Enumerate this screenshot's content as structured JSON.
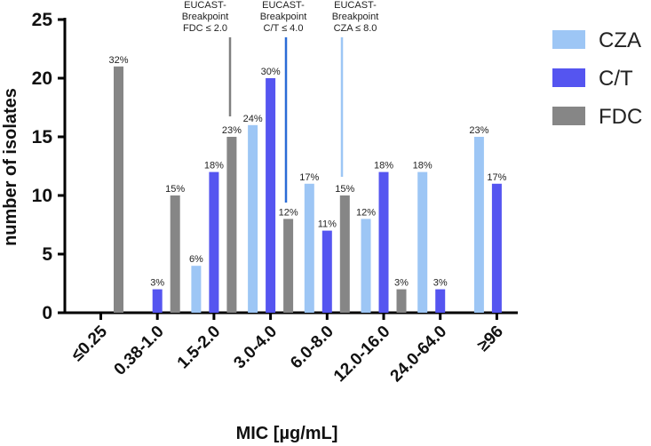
{
  "chart_data": {
    "type": "bar",
    "title": "",
    "xlabel": "MIC [µg/mL]",
    "ylabel": "number of isolates",
    "ylim": [
      0,
      25
    ],
    "yticks": [
      0,
      5,
      10,
      15,
      20,
      25
    ],
    "grid": false,
    "legend_position": "top-right",
    "categories": [
      "≤0.25",
      "0.38-1.0",
      "1.5-2.0",
      "3.0-4.0",
      "6.0-8.0",
      "12.0-16.0",
      "24.0-64.0",
      "≥96"
    ],
    "series": [
      {
        "name": "CZA",
        "color": "#9dc6f5",
        "values": [
          null,
          null,
          4,
          16,
          11,
          8,
          12,
          15
        ],
        "labels": [
          "",
          "",
          "6%",
          "24%",
          "17%",
          "12%",
          "18%",
          "23%"
        ]
      },
      {
        "name": "C/T",
        "color": "#5555f0",
        "values": [
          null,
          2,
          12,
          20,
          7,
          12,
          2,
          11
        ],
        "labels": [
          "",
          "3%",
          "18%",
          "30%",
          "11%",
          "18%",
          "3%",
          "17%"
        ]
      },
      {
        "name": "FDC",
        "color": "#868686",
        "values": [
          21,
          10,
          15,
          8,
          10,
          2,
          null,
          null
        ],
        "labels": [
          "32%",
          "15%",
          "23%",
          "12%",
          "15%",
          "3%",
          "",
          ""
        ]
      }
    ],
    "annotations": [
      {
        "lines": [
          "EUCAST-",
          "Breakpoint",
          "FDC ≤ 2.0"
        ],
        "color": "#808080",
        "x_between": "1.5-2.0 | 3.0-4.0"
      },
      {
        "lines": [
          "EUCAST-",
          "Breakpoint",
          "C/T ≤ 4.0"
        ],
        "color": "#2b6cd6",
        "x_between": "3.0-4.0 | 6.0-8.0"
      },
      {
        "lines": [
          "EUCAST-",
          "Breakpoint",
          "CZA ≤ 8.0"
        ],
        "color": "#9dc6f5",
        "x_between": "6.0-8.0 | 12.0-16.0"
      }
    ]
  }
}
